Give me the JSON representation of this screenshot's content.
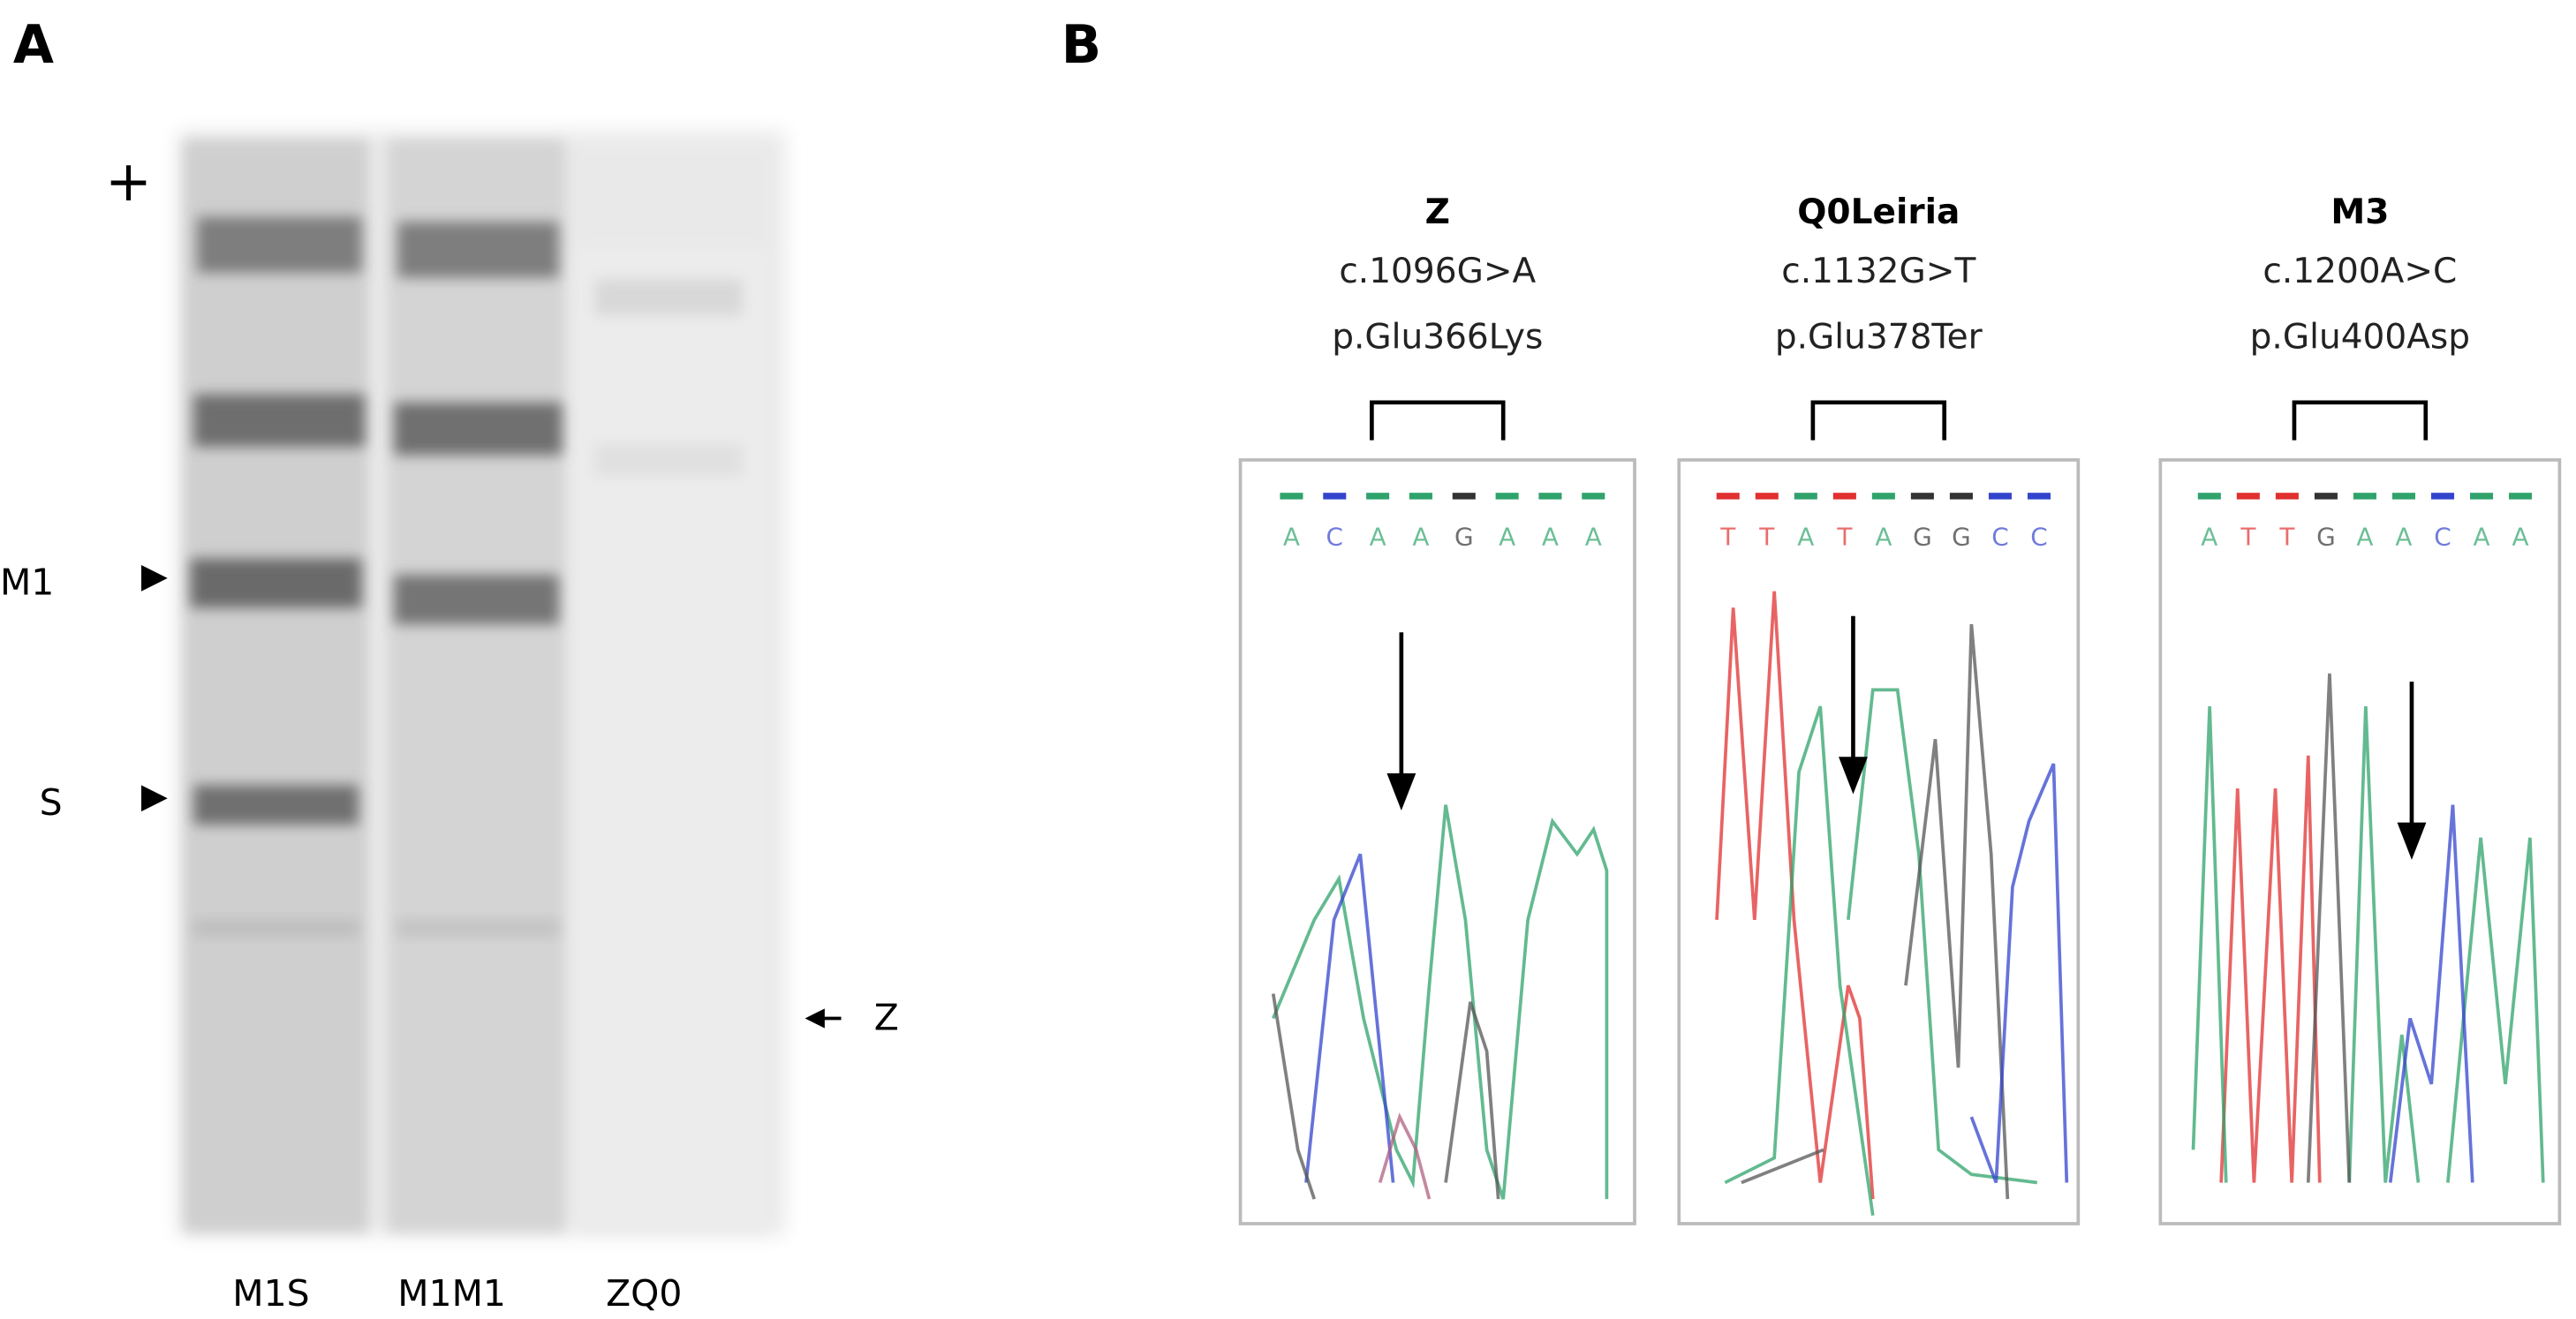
{
  "panel_a": {
    "label": "A",
    "plus": "+",
    "bands": [
      "M1",
      "S"
    ],
    "arrow_label": "Z",
    "lanes": [
      "M1S",
      "M1M1",
      "ZQ0"
    ]
  },
  "panel_b": {
    "label": "B",
    "panels": [
      {
        "name": "Z",
        "cdna": "c.1096G>A",
        "protein": "p.Glu366Lys",
        "bases": [
          "A",
          "C",
          "A",
          "A",
          "G",
          "A",
          "A",
          "A"
        ]
      },
      {
        "name": "Q0Leiria",
        "cdna": "c.1132G>T",
        "protein": "p.Glu378Ter",
        "bases": [
          "T",
          "T",
          "A",
          "T",
          "A",
          "G",
          "G",
          "C",
          "C"
        ]
      },
      {
        "name": "M3",
        "cdna": "c.1200A>C",
        "protein": "p.Glu400Asp",
        "bases": [
          "A",
          "T",
          "T",
          "G",
          "A",
          "A",
          "C",
          "A",
          "A"
        ]
      }
    ]
  }
}
